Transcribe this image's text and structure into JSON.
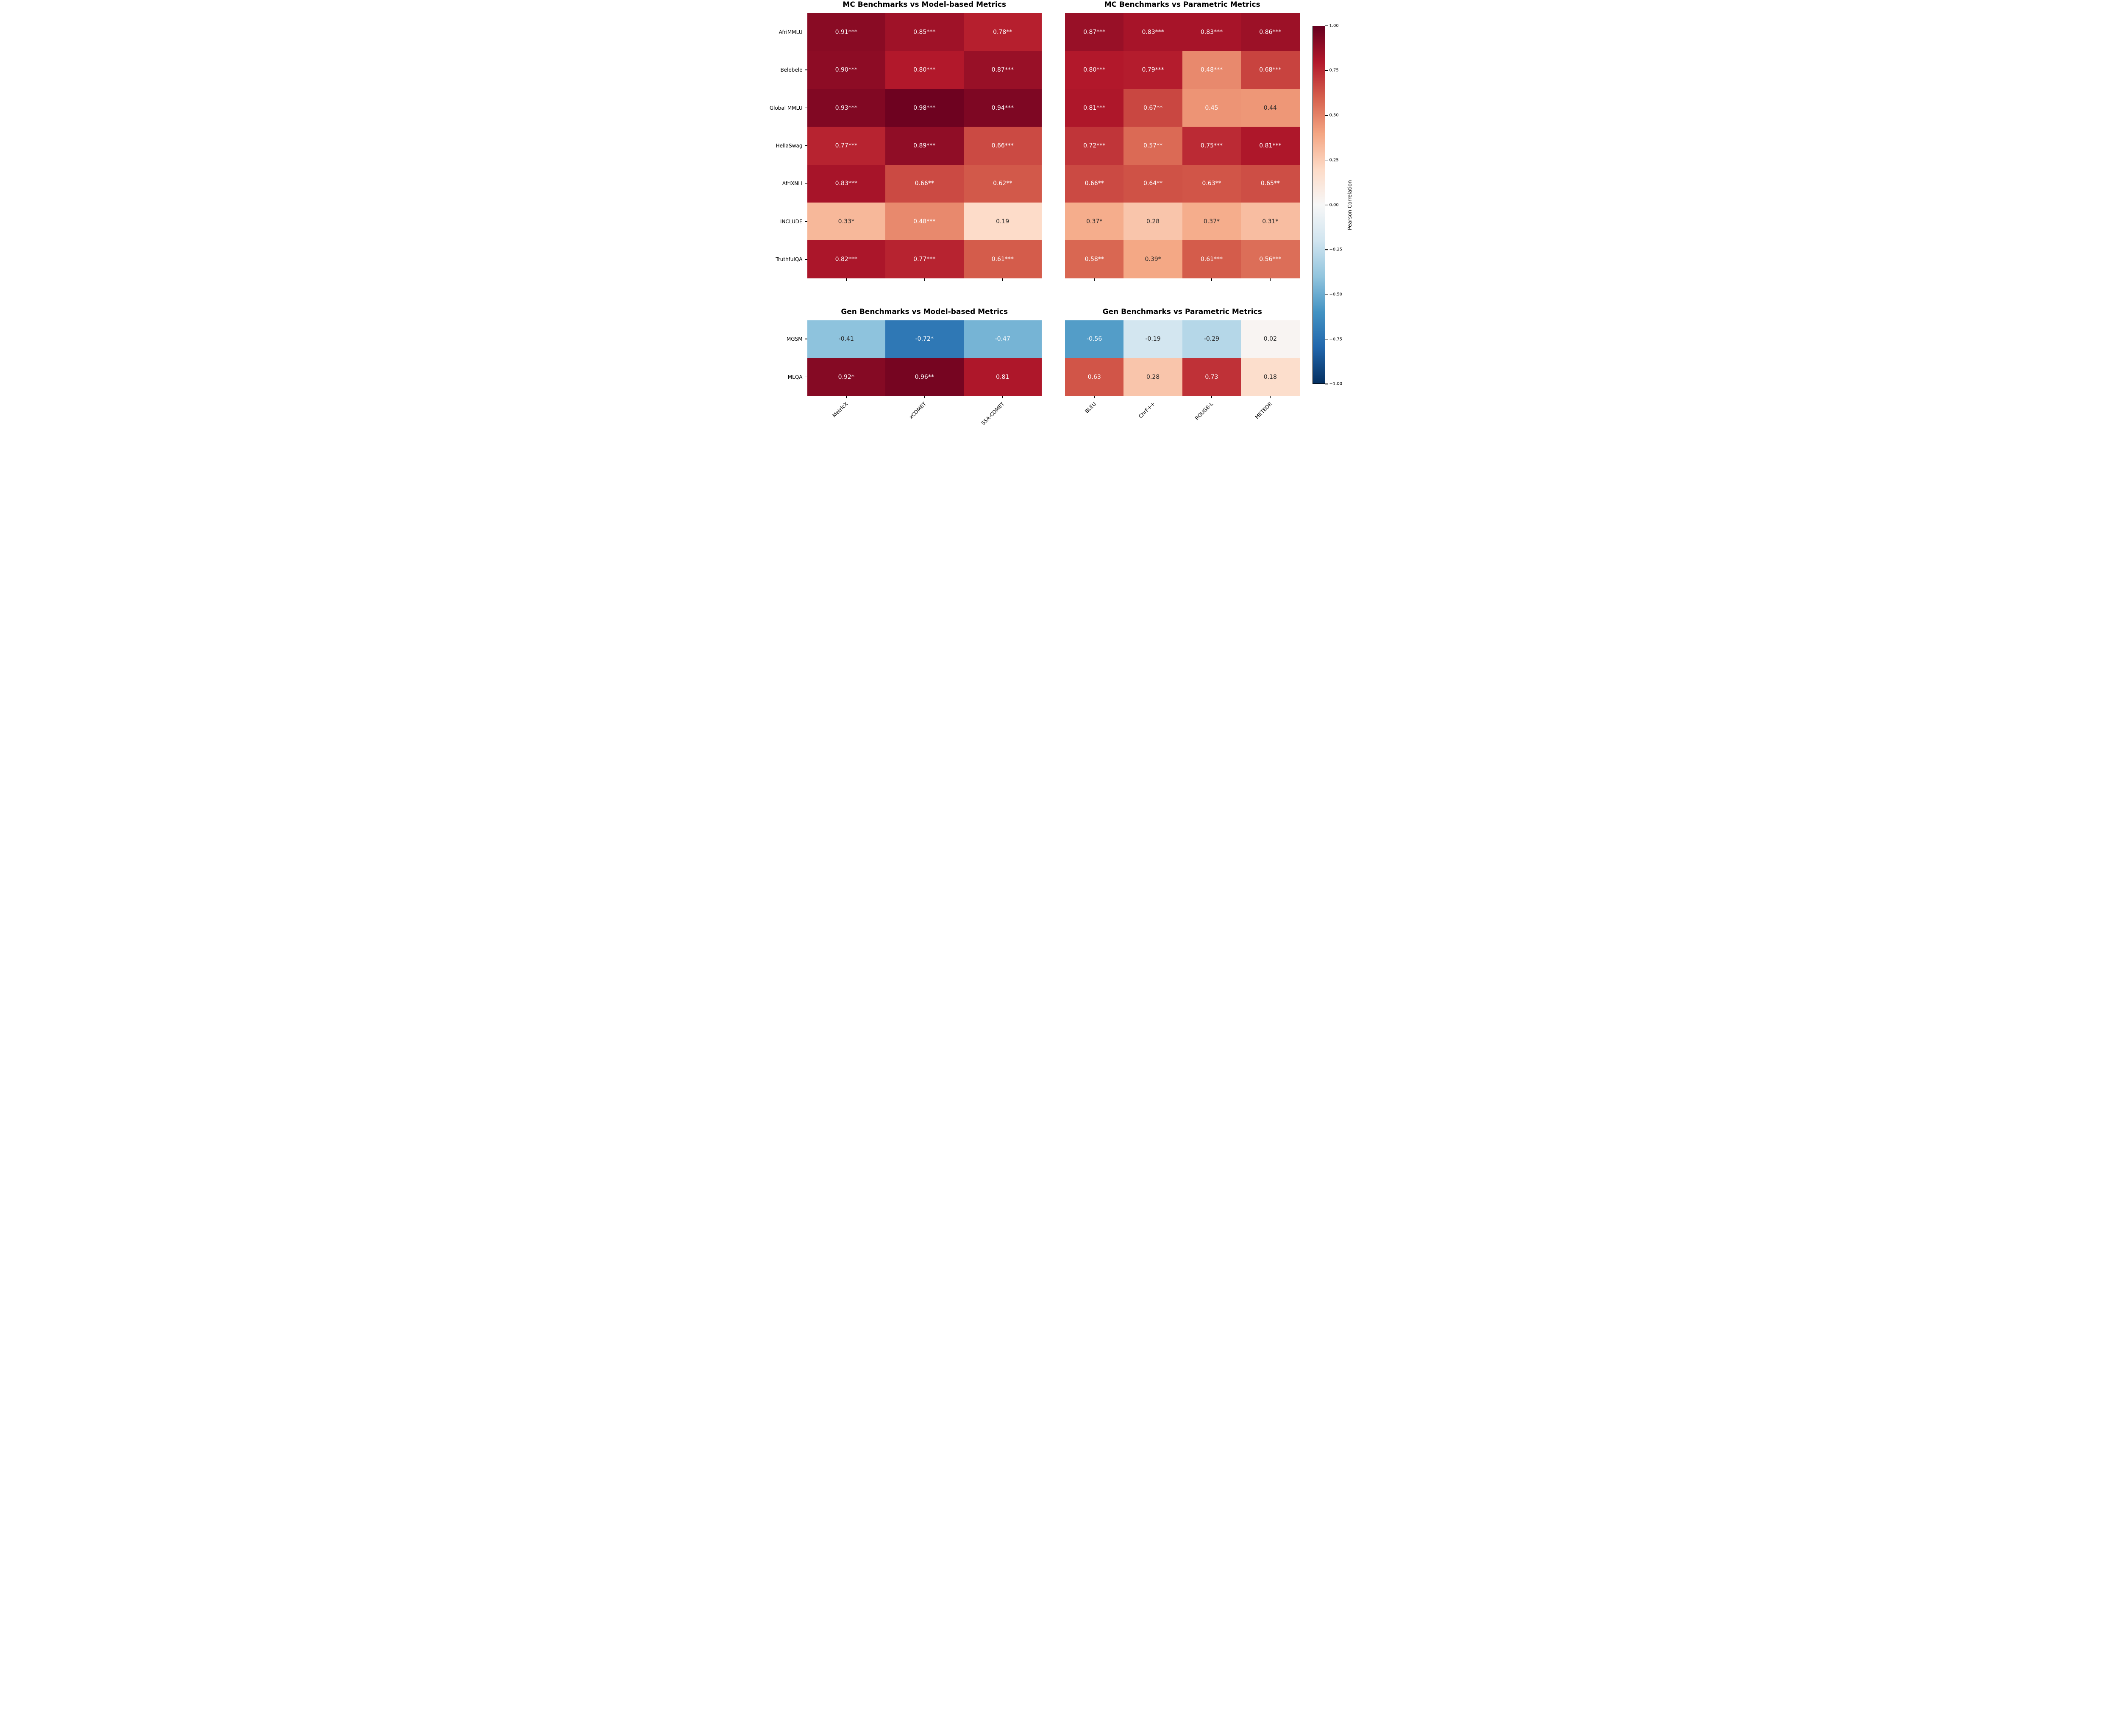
{
  "figure_background": "#ffffff",
  "annotation_colors": {
    "light": "#ffffff",
    "dark": "#262626"
  },
  "colormap": {
    "name": "RdBu_r",
    "stops_top_to_bottom": [
      "#67001f",
      "#b2182b",
      "#d6604d",
      "#f4a582",
      "#fddbc7",
      "#f7f7f7",
      "#d1e5f0",
      "#92c5de",
      "#4393c3",
      "#2166ac",
      "#053061"
    ]
  },
  "colorbar": {
    "label": "Pearson Correlation",
    "vmin": -1.0,
    "vmax": 1.0,
    "tick_values": [
      1.0,
      0.75,
      0.5,
      0.25,
      0.0,
      -0.25,
      -0.5,
      -0.75,
      -1.0
    ],
    "tick_labels": [
      "1.00",
      "0.75",
      "0.50",
      "0.25",
      "0.00",
      "−0.25",
      "−0.50",
      "−0.75",
      "−1.00"
    ]
  },
  "chart_data": [
    {
      "id": "mc-vs-model-based",
      "type": "heatmap",
      "title": "MC Benchmarks vs Model-based Metrics",
      "rows": [
        "AfriMMLU",
        "Belebele",
        "Global MMLU",
        "HellaSwag",
        "AfriXNLI",
        "INCLUDE",
        "TruthfulQA"
      ],
      "cols": [
        "MetricX",
        "xCOMET",
        "SSA-COMET"
      ],
      "values": [
        [
          0.91,
          0.85,
          0.78
        ],
        [
          0.9,
          0.8,
          0.87
        ],
        [
          0.93,
          0.98,
          0.94
        ],
        [
          0.77,
          0.89,
          0.66
        ],
        [
          0.83,
          0.66,
          0.62
        ],
        [
          0.33,
          0.48,
          0.19
        ],
        [
          0.82,
          0.77,
          0.61
        ]
      ],
      "labels": [
        [
          "0.91***",
          "0.85***",
          "0.78**"
        ],
        [
          "0.90***",
          "0.80***",
          "0.87***"
        ],
        [
          "0.93***",
          "0.98***",
          "0.94***"
        ],
        [
          "0.77***",
          "0.89***",
          "0.66***"
        ],
        [
          "0.83***",
          "0.66**",
          "0.62**"
        ],
        [
          "0.33*",
          "0.48***",
          "0.19"
        ],
        [
          "0.82***",
          "0.77***",
          "0.61***"
        ]
      ]
    },
    {
      "id": "mc-vs-parametric",
      "type": "heatmap",
      "title": "MC Benchmarks vs Parametric Metrics",
      "rows": [
        "AfriMMLU",
        "Belebele",
        "Global MMLU",
        "HellaSwag",
        "AfriXNLI",
        "INCLUDE",
        "TruthfulQA"
      ],
      "cols": [
        "BLEU",
        "ChrF++",
        "ROUGE-L",
        "METEOR"
      ],
      "values": [
        [
          0.87,
          0.83,
          0.83,
          0.86
        ],
        [
          0.8,
          0.79,
          0.48,
          0.68
        ],
        [
          0.81,
          0.67,
          0.45,
          0.44
        ],
        [
          0.72,
          0.57,
          0.75,
          0.81
        ],
        [
          0.66,
          0.64,
          0.63,
          0.65
        ],
        [
          0.37,
          0.28,
          0.37,
          0.31
        ],
        [
          0.58,
          0.39,
          0.61,
          0.56
        ]
      ],
      "labels": [
        [
          "0.87***",
          "0.83***",
          "0.83***",
          "0.86***"
        ],
        [
          "0.80***",
          "0.79***",
          "0.48***",
          "0.68***"
        ],
        [
          "0.81***",
          "0.67**",
          "0.45",
          "0.44"
        ],
        [
          "0.72***",
          "0.57**",
          "0.75***",
          "0.81***"
        ],
        [
          "0.66**",
          "0.64**",
          "0.63**",
          "0.65**"
        ],
        [
          "0.37*",
          "0.28",
          "0.37*",
          "0.31*"
        ],
        [
          "0.58**",
          "0.39*",
          "0.61***",
          "0.56***"
        ]
      ]
    },
    {
      "id": "gen-vs-model-based",
      "type": "heatmap",
      "title": "Gen Benchmarks vs Model-based Metrics",
      "rows": [
        "MGSM",
        "MLQA"
      ],
      "cols": [
        "MetricX",
        "xCOMET",
        "SSA-COMET"
      ],
      "values": [
        [
          -0.41,
          -0.72,
          -0.47
        ],
        [
          0.92,
          0.96,
          0.81
        ]
      ],
      "labels": [
        [
          "-0.41",
          "-0.72*",
          "-0.47"
        ],
        [
          "0.92*",
          "0.96**",
          "0.81"
        ]
      ]
    },
    {
      "id": "gen-vs-parametric",
      "type": "heatmap",
      "title": "Gen Benchmarks vs Parametric Metrics",
      "rows": [
        "MGSM",
        "MLQA"
      ],
      "cols": [
        "BLEU",
        "ChrF++",
        "ROUGE-L",
        "METEOR"
      ],
      "values": [
        [
          -0.56,
          -0.19,
          -0.29,
          0.02
        ],
        [
          0.63,
          0.28,
          0.73,
          0.18
        ]
      ],
      "labels": [
        [
          "-0.56",
          "-0.19",
          "-0.29",
          "0.02"
        ],
        [
          "0.63",
          "0.28",
          "0.73",
          "0.18"
        ]
      ]
    }
  ]
}
